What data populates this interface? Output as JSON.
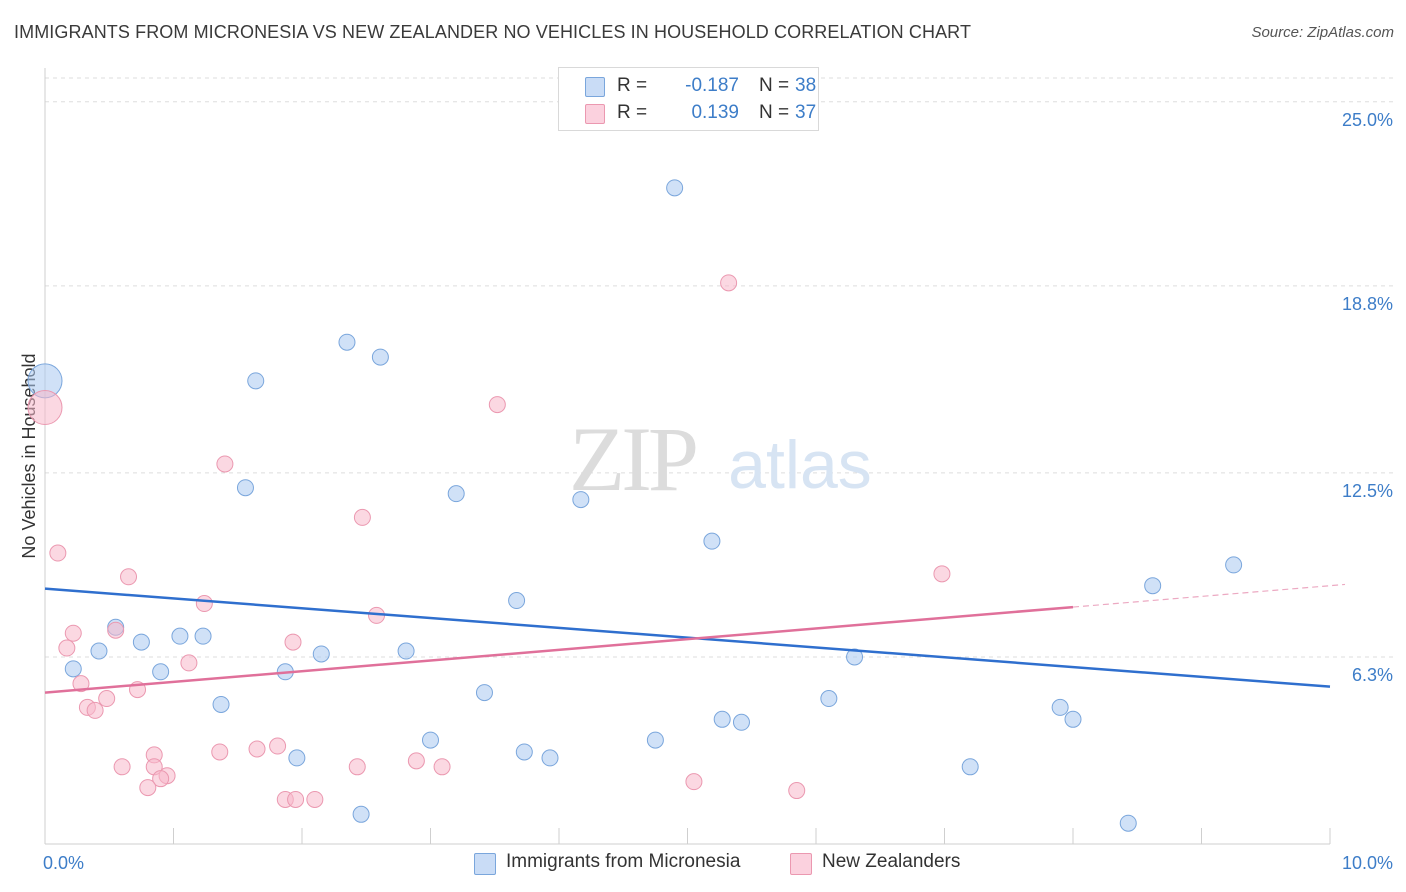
{
  "header": {
    "title": "IMMIGRANTS FROM MICRONESIA VS NEW ZEALANDER NO VEHICLES IN HOUSEHOLD CORRELATION CHART",
    "source": "Source: ZipAtlas.com"
  },
  "watermark": {
    "zip": "ZIP",
    "atlas": "atlas"
  },
  "stats_legend": [
    {
      "r_label": "R =",
      "r_value": "-0.187",
      "n_label": "N =",
      "n_value": "38",
      "color": "#aac8f0"
    },
    {
      "r_label": "R =",
      "r_value": "0.139",
      "n_label": "N =",
      "n_value": "37",
      "color": "#f7b8cb"
    }
  ],
  "bottom_legend": [
    {
      "label": "Immigrants from Micronesia",
      "color": "#aac8f0"
    },
    {
      "label": "New Zealanders",
      "color": "#f7b8cb"
    }
  ],
  "chart_data": {
    "type": "scatter",
    "title": "IMMIGRANTS FROM MICRONESIA VS NEW ZEALANDER NO VEHICLES IN HOUSEHOLD CORRELATION CHART",
    "xlabel": "",
    "ylabel": "No Vehicles in Household",
    "xlim": [
      0,
      10
    ],
    "ylim": [
      0,
      25.8
    ],
    "x_tick_labels": [
      {
        "value": 0,
        "label": "0.0%"
      },
      {
        "value": 10,
        "label": "10.0%"
      }
    ],
    "y_tick_labels": [
      {
        "value": 6.3,
        "label": "6.3%"
      },
      {
        "value": 12.5,
        "label": "12.5%"
      },
      {
        "value": 18.8,
        "label": "18.8%"
      },
      {
        "value": 25.0,
        "label": "25.0%"
      }
    ],
    "grid": true,
    "legend_position": "bottom",
    "series": [
      {
        "name": "Immigrants from Micronesia",
        "color": "#aac8f0",
        "stroke": "#7aa6dc",
        "trend_color": "#2f6fce",
        "trend": {
          "x": [
            0,
            10
          ],
          "y": [
            8.6,
            5.3
          ],
          "solid_to": 10
        },
        "points": [
          [
            0.0,
            15.6,
            "big"
          ],
          [
            4.9,
            22.1
          ],
          [
            2.35,
            16.9
          ],
          [
            2.61,
            16.4
          ],
          [
            1.64,
            15.6
          ],
          [
            1.56,
            12.0
          ],
          [
            3.2,
            11.8
          ],
          [
            4.17,
            11.6
          ],
          [
            5.19,
            10.2
          ],
          [
            9.25,
            9.4
          ],
          [
            8.62,
            8.7
          ],
          [
            3.67,
            8.2
          ],
          [
            0.55,
            7.3
          ],
          [
            1.05,
            7.0
          ],
          [
            1.23,
            7.0
          ],
          [
            0.75,
            6.8
          ],
          [
            0.42,
            6.5
          ],
          [
            2.15,
            6.4
          ],
          [
            2.81,
            6.5
          ],
          [
            0.22,
            5.9
          ],
          [
            0.9,
            5.8
          ],
          [
            1.87,
            5.8
          ],
          [
            6.3,
            6.3
          ],
          [
            3.42,
            5.1
          ],
          [
            6.1,
            4.9
          ],
          [
            1.37,
            4.7
          ],
          [
            7.9,
            4.6
          ],
          [
            8.0,
            4.2
          ],
          [
            5.27,
            4.2
          ],
          [
            5.42,
            4.1
          ],
          [
            3.0,
            3.5
          ],
          [
            4.75,
            3.5
          ],
          [
            3.73,
            3.1
          ],
          [
            3.93,
            2.9
          ],
          [
            1.96,
            2.9
          ],
          [
            7.2,
            2.6
          ],
          [
            2.46,
            1.0
          ],
          [
            8.43,
            0.7
          ]
        ]
      },
      {
        "name": "New Zealanders",
        "color": "#f7b8cb",
        "stroke": "#eb98b0",
        "trend_color": "#e0709a",
        "trend": {
          "x": [
            0,
            10
          ],
          "y": [
            5.1,
            8.7
          ],
          "solid_to": 8.0
        },
        "points": [
          [
            0.0,
            14.7,
            "big"
          ],
          [
            5.32,
            18.9
          ],
          [
            3.52,
            14.8
          ],
          [
            1.4,
            12.8
          ],
          [
            2.47,
            11.0
          ],
          [
            0.1,
            9.8
          ],
          [
            0.65,
            9.0
          ],
          [
            6.98,
            9.1
          ],
          [
            1.24,
            8.1
          ],
          [
            2.58,
            7.7
          ],
          [
            0.22,
            7.1
          ],
          [
            0.55,
            7.2
          ],
          [
            0.17,
            6.6
          ],
          [
            1.93,
            6.8
          ],
          [
            1.12,
            6.1
          ],
          [
            0.28,
            5.4
          ],
          [
            0.72,
            5.2
          ],
          [
            0.48,
            4.9
          ],
          [
            0.33,
            4.6
          ],
          [
            0.39,
            4.5
          ],
          [
            1.36,
            3.1
          ],
          [
            1.65,
            3.2
          ],
          [
            1.81,
            3.3
          ],
          [
            2.89,
            2.8
          ],
          [
            3.09,
            2.6
          ],
          [
            0.85,
            3.0
          ],
          [
            0.6,
            2.6
          ],
          [
            0.85,
            2.6
          ],
          [
            0.95,
            2.3
          ],
          [
            0.9,
            2.2
          ],
          [
            2.43,
            2.6
          ],
          [
            5.05,
            2.1
          ],
          [
            5.85,
            1.8
          ],
          [
            0.8,
            1.9
          ],
          [
            1.87,
            1.5
          ],
          [
            1.95,
            1.5
          ],
          [
            2.1,
            1.5
          ]
        ]
      }
    ]
  }
}
